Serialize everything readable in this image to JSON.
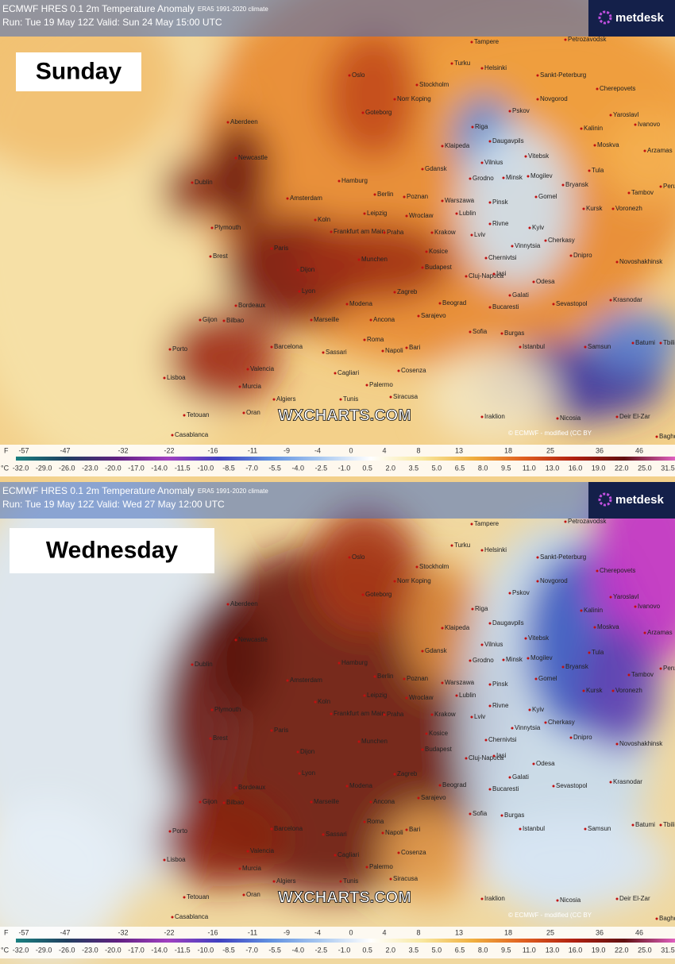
{
  "panels": [
    {
      "header": {
        "title": "ECMWF HRES 0.1 2m Temperature Anomaly",
        "climate": "ERA5 1991-2020 climate",
        "run": "Run: Tue 19 May 12Z Valid: Sun 24 May 15:00 UTC",
        "brand": "metdesk"
      },
      "day_label": "Sunday",
      "watermark": "WXCHARTS.COM",
      "credit": "© ECMWF - modified (CC BY",
      "cities": [
        "Tampere",
        "Petrozavodsk",
        "Oslo",
        "Turku",
        "Helsinki",
        "Sankt-Peterburg",
        "Stockholm",
        "Norr Koping",
        "Cherepovets",
        "Novgorod",
        "Goteborg",
        "Pskov",
        "Yaroslavl",
        "Ivanovo",
        "Kalinin",
        "Riga",
        "Aberdeen",
        "Moskva",
        "Arzamas",
        "Daugavpils",
        "Klaipeda",
        "Vitebsk",
        "Newcastle",
        "Gdansk",
        "Vilnius",
        "Tula",
        "Minsk",
        "Mogilev",
        "Bryansk",
        "Tambov",
        "Penza",
        "Dublin",
        "Hamburg",
        "Grodno",
        "Gomel",
        "Amsterdam",
        "Berlin",
        "Poznan",
        "Warszawa",
        "Pinsk",
        "Kursk",
        "Voronezh",
        "Koln",
        "Leipzig",
        "Wroclaw",
        "Lublin",
        "Plymouth",
        "Rivne",
        "Kyiv",
        "Frankfurt am Main",
        "Praha",
        "Krakow",
        "Lviv",
        "Cherkasy",
        "Vinnytsia",
        "Brest",
        "Paris",
        "Munchen",
        "Chernivtsi",
        "Dnipro",
        "Novoshakhinsk",
        "Kosice",
        "Dijon",
        "Budapest",
        "Cluj-Napoca",
        "Iasi",
        "Odesa",
        "Lyon",
        "Zagreb",
        "Galati",
        "Krasnodar",
        "Sevastopol",
        "Bordeaux",
        "Modena",
        "Beograd",
        "Bucaresti",
        "Gijon",
        "Bilbao",
        "Marseille",
        "Sarajevo",
        "Ancona",
        "Sofia",
        "Batumi",
        "Tbilisi",
        "Samsun",
        "Burgas",
        "Porto",
        "Roma",
        "Barcelona",
        "Bari",
        "Napoli",
        "Istanbul",
        "Sassari",
        "Lisboa",
        "Valencia",
        "Cagliari",
        "Cosenza",
        "Murcia",
        "Palermo",
        "Siracusa",
        "Algiers",
        "Tunis",
        "Tetouan",
        "Oran",
        "Iraklion",
        "Nicosia",
        "Deir El-Zar",
        "Casablanca",
        "Baghdad"
      ],
      "legend": {
        "f_unit": "F",
        "f_ticks": [
          -57,
          -47,
          -32,
          -22,
          -16,
          -11,
          -9,
          -4,
          0,
          4,
          8,
          13,
          18,
          25,
          36,
          46
        ],
        "c_unit": "°C",
        "c_ticks": [
          "-32.0",
          "-29.0",
          "-26.0",
          "-23.0",
          "-20.0",
          "-17.0",
          "-14.0",
          "-11.5",
          "-10.0",
          "-8.5",
          "-7.0",
          "-5.5",
          "-4.0",
          "-2.5",
          "-1.0",
          "0.5",
          "2.0",
          "3.5",
          "5.0",
          "6.5",
          "8.0",
          "9.5",
          "11.0",
          "13.0",
          "16.0",
          "19.0",
          "22.0",
          "25.0",
          "31.5"
        ]
      }
    },
    {
      "header": {
        "title": "ECMWF HRES 0.1 2m Temperature Anomaly",
        "climate": "ERA5 1991-2020 climate",
        "run": "Run: Tue 19 May 12Z Valid: Wed 27 May 12:00 UTC",
        "brand": "metdesk"
      },
      "day_label": "Wednesday",
      "watermark": "WXCHARTS.COM",
      "credit": "© ECMWF - modified (CC BY",
      "cities": [
        "Tampere",
        "Petrozavodsk",
        "Oslo",
        "Turku",
        "Helsinki",
        "Sankt-Peterburg",
        "Stockholm",
        "Norr Koping",
        "Cherepovets",
        "Novgorod",
        "Goteborg",
        "Pskov",
        "Yaroslavl",
        "Ivanovo",
        "Kalinin",
        "Riga",
        "Aberdeen",
        "Moskva",
        "Arzamas",
        "Daugavpils",
        "Klaipeda",
        "Vitebsk",
        "Newcastle",
        "Gdansk",
        "Vilnius",
        "Tula",
        "Minsk",
        "Mogilev",
        "Bryansk",
        "Tambov",
        "Penza",
        "Dublin",
        "Hamburg",
        "Grodno",
        "Gomel",
        "Amsterdam",
        "Berlin",
        "Poznan",
        "Warszawa",
        "Pinsk",
        "Kursk",
        "Voronezh",
        "Koln",
        "Leipzig",
        "Wroclaw",
        "Lublin",
        "Plymouth",
        "Rivne",
        "Kyiv",
        "Frankfurt am Main",
        "Praha",
        "Krakow",
        "Lviv",
        "Cherkasy",
        "Vinnytsia",
        "Brest",
        "Paris",
        "Munchen",
        "Chernivtsi",
        "Dnipro",
        "Novoshakhinsk",
        "Kosice",
        "Dijon",
        "Budapest",
        "Cluj-Napoca",
        "Iasi",
        "Odesa",
        "Lyon",
        "Zagreb",
        "Galati",
        "Krasnodar",
        "Sevastopol",
        "Bordeaux",
        "Modena",
        "Beograd",
        "Bucaresti",
        "Gijon",
        "Bilbao",
        "Marseille",
        "Sarajevo",
        "Ancona",
        "Sofia",
        "Batumi",
        "Tbilisi",
        "Samsun",
        "Burgas",
        "Porto",
        "Roma",
        "Barcelona",
        "Bari",
        "Napoli",
        "Istanbul",
        "Sassari",
        "Lisboa",
        "Valencia",
        "Cagliari",
        "Cosenza",
        "Murcia",
        "Palermo",
        "Siracusa",
        "Algiers",
        "Tunis",
        "Tetouan",
        "Oran",
        "Iraklion",
        "Nicosia",
        "Deir El-Zar",
        "Casablanca",
        "Baghdad"
      ],
      "legend": {
        "f_unit": "F",
        "f_ticks": [
          -57,
          -47,
          -32,
          -22,
          -16,
          -11,
          -9,
          -4,
          0,
          4,
          8,
          13,
          18,
          25,
          36,
          46
        ],
        "c_unit": "°C",
        "c_ticks": [
          "-32.0",
          "-29.0",
          "-26.0",
          "-23.0",
          "-20.0",
          "-17.0",
          "-14.0",
          "-11.5",
          "-10.0",
          "-8.5",
          "-7.0",
          "-5.5",
          "-4.0",
          "-2.5",
          "-1.0",
          "0.5",
          "2.0",
          "3.5",
          "5.0",
          "6.5",
          "8.0",
          "9.5",
          "11.0",
          "13.0",
          "16.0",
          "19.0",
          "22.0",
          "25.0",
          "31.5"
        ]
      }
    }
  ]
}
